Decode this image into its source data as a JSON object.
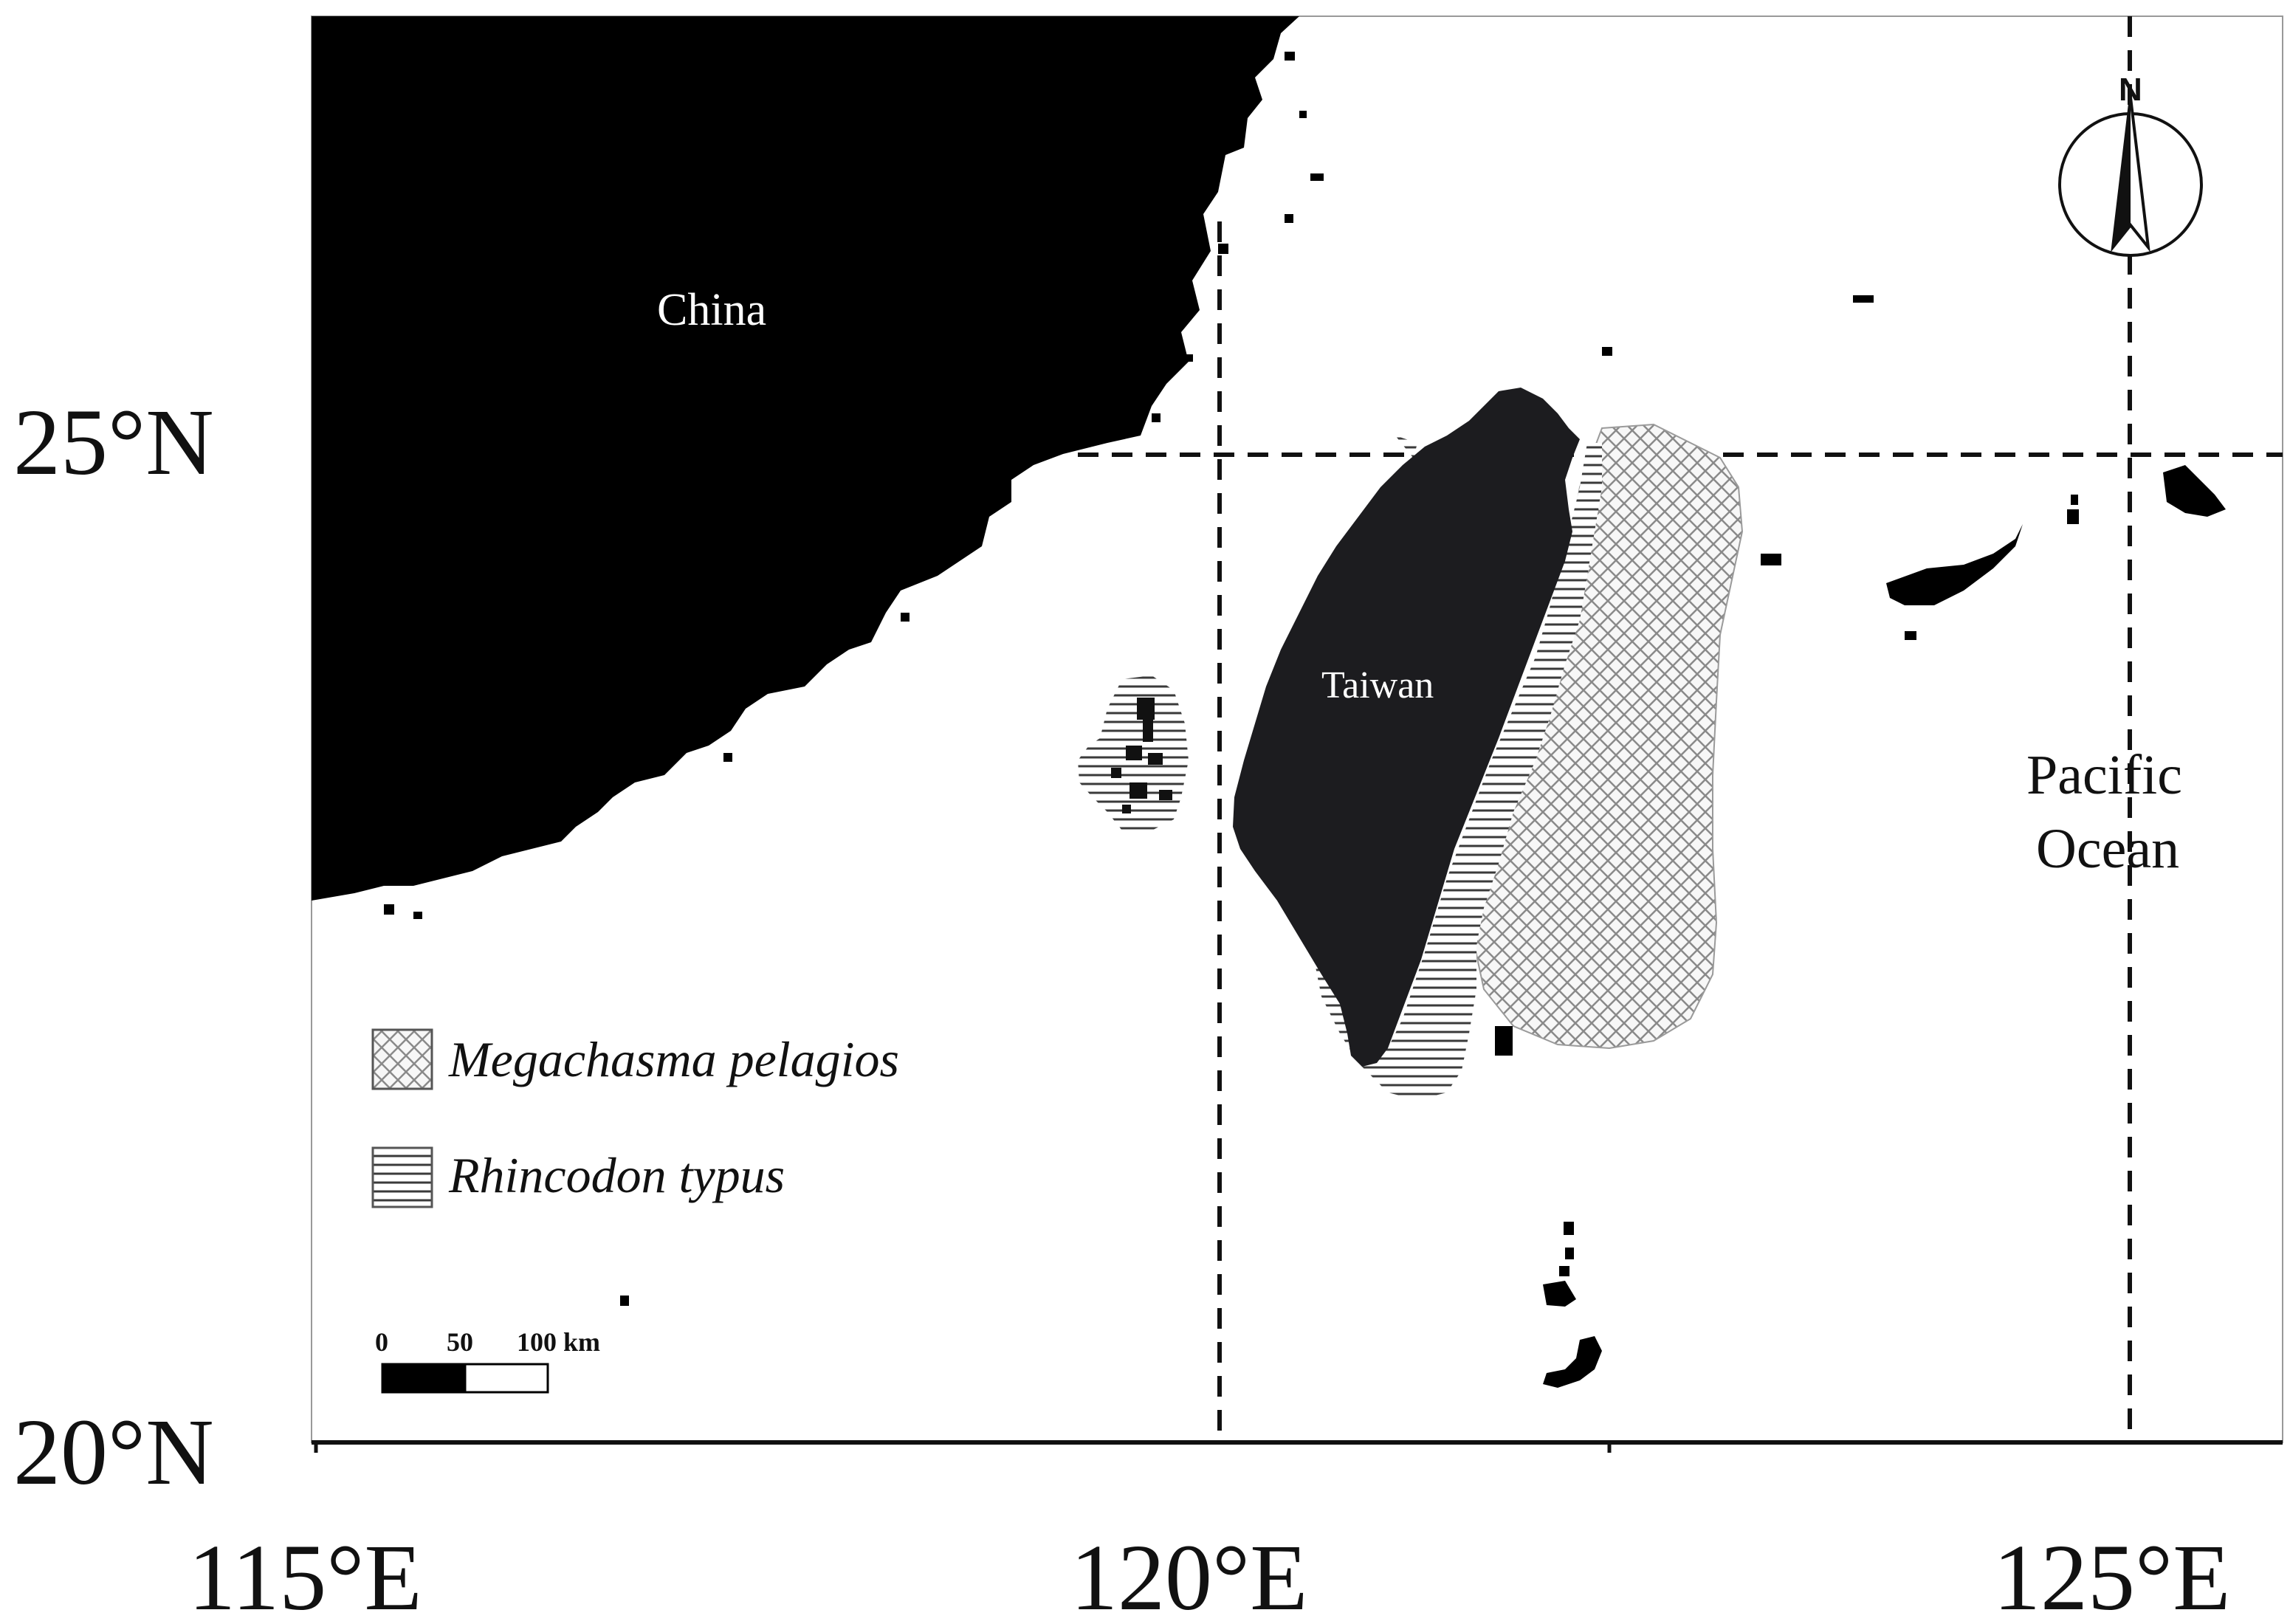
{
  "map": {
    "places": {
      "china": "China",
      "taiwan": "Taiwan",
      "ocean_line1": "Pacific",
      "ocean_line2": "Ocean"
    },
    "latitude_labels": [
      "25°N",
      "20°N"
    ],
    "longitude_labels": [
      "115°E",
      "120°E",
      "125°E"
    ],
    "legend": [
      {
        "label": "Megachasma pelagios",
        "pattern": "crosshatch"
      },
      {
        "label": "Rhincodon typus",
        "pattern": "horizontal-lines"
      }
    ],
    "scale_bar": {
      "ticks": [
        "0",
        "50",
        "100 km"
      ]
    },
    "north_arrow": {
      "label": "N",
      "icon": "north-arrow-icon"
    },
    "colors": {
      "land": "#000000",
      "taiwan": "#1c1c1f",
      "background": "#ffffff"
    }
  }
}
